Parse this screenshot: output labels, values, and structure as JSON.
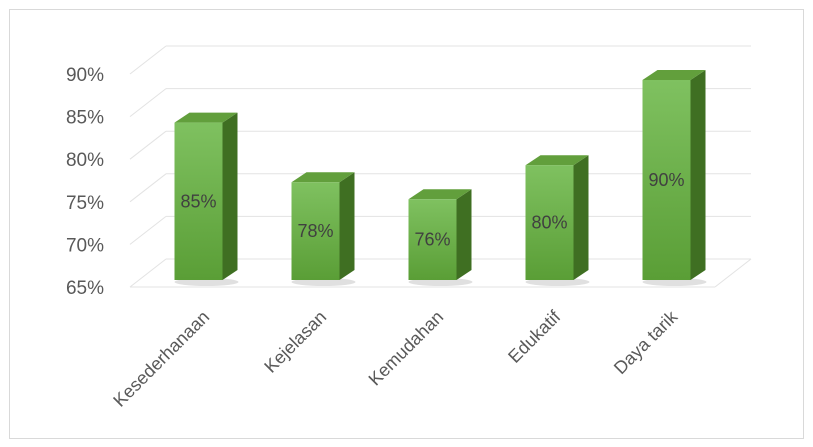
{
  "chart_data": {
    "type": "bar",
    "title": "",
    "xlabel": "",
    "ylabel": "",
    "categories": [
      "Kesederhanaan",
      "Kejelasan",
      "Kemudahan",
      "Edukatif",
      "Daya tarik"
    ],
    "values": [
      85,
      78,
      76,
      80,
      90
    ],
    "data_labels": [
      "85%",
      "78%",
      "76%",
      "80%",
      "90%"
    ],
    "yticks": [
      65,
      70,
      75,
      80,
      85,
      90
    ],
    "ytick_labels": [
      "65%",
      "70%",
      "75%",
      "80%",
      "85%",
      "90%"
    ],
    "ylim": [
      65,
      90
    ],
    "grid": true,
    "legend": "none",
    "style": "3d-column",
    "colors": {
      "bar_front_top": "#7fc160",
      "bar_front_bottom": "#5a9e36",
      "bar_side": "#3f6f22",
      "bar_top": "#629f3c",
      "grid": "#e3e3e3",
      "text": "#595959"
    }
  }
}
